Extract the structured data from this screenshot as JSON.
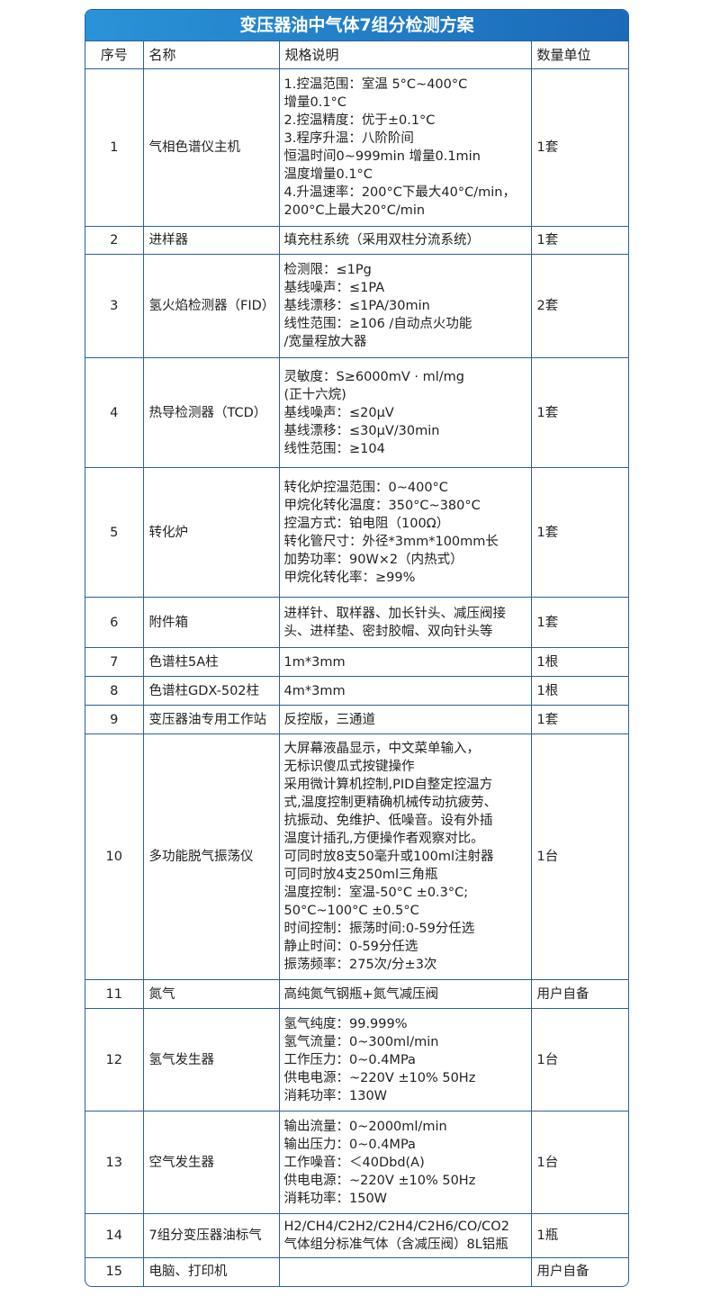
{
  "title": "变压器油中气体7组分检测方案",
  "headers": [
    "序号",
    "名称",
    "规格说明",
    "数量单位"
  ],
  "rows": [
    {
      "no": "1",
      "name": "气相色谱仪主机",
      "spec": "1.控温范围：室温 5°C~400°C\n增量0.1°C\n2.控温精度：优于±0.1°C\n3.程序升温：八阶阶间\n恒温时间0~999min 增量0.1min\n温度增量0.1°C\n4.升温速率：200°C下最大40°C/min，\n200°C上最大20°C/min",
      "qty": "1套"
    },
    {
      "no": "2",
      "name": "进样器",
      "spec": "填充柱系统（采用双柱分流系统）",
      "qty": "1套"
    },
    {
      "no": "3",
      "name": "氢火焰检测器（FID）",
      "spec": "检测限：≤1Pg\n基线噪声：≤1PA\n基线漂移：≤1PA/30min\n线性范围：≥106 /自动点火功能\n/宽量程放大器",
      "qty": "2套"
    },
    {
      "no": "4",
      "name": "热导检测器（TCD）",
      "spec": "灵敏度：S≥6000mV · ml/mg\n(正十六烷)\n基线噪声：≤20μV\n基线漂移：≤30μV/30min\n线性范围：≥104",
      "qty": "1套"
    },
    {
      "no": "5",
      "name": "转化炉",
      "spec": "转化炉控温范围：0~400°C\n甲烷化转化温度：350°C~380°C\n控温方式：铂电阻（100Ω）\n转化管尺寸：外径*3mm*100mm长\n加势功率：90W×2（内热式）\n甲烷化转化率：≥99%",
      "qty": "1套"
    },
    {
      "no": "6",
      "name": "附件箱",
      "spec": "进样针、取样器、加长针头、减压阀接\n头、进样垫、密封胶帽、双向针头等",
      "qty": "1套"
    },
    {
      "no": "7",
      "name": "色谱柱5A柱",
      "spec": "1m*3mm",
      "qty": "1根"
    },
    {
      "no": "8",
      "name": "色谱柱GDX-502柱",
      "spec": "4m*3mm",
      "qty": "1根"
    },
    {
      "no": "9",
      "name": "变压器油专用工作站",
      "spec": "反控版，三通道",
      "qty": "1套"
    },
    {
      "no": "10",
      "name": "多功能脱气振荡仪",
      "spec": "大屏幕液晶显示，中文菜单输入，\n无标识傻瓜式按键操作\n采用微计算机控制,PID自整定控温方\n式,温度控制更精确机械传动抗疲劳、\n抗振动、免维护、低噪音。设有外插\n温度计插孔,方便操作者观察对比。\n可同时放8支50毫升或100ml注射器\n可同时放4支250ml三角瓶\n温度控制：室温-50°C ±0.3°C;\n 50°C~100°C ±0.5°C\n时间控制：振荡时间:0-59分任选\n静止时间：0-59分任选\n振荡频率：275次/分±3次",
      "qty": "1台"
    },
    {
      "no": "11",
      "name": "氮气",
      "spec": "高纯氮气钢瓶+氮气减压阀",
      "qty": "用户自备"
    },
    {
      "no": "12",
      "name": "氢气发生器",
      "spec": "氢气纯度：99.999%\n氢气流量：0~300ml/min\n工作压力：0~0.4MPa\n供电电源：~220V ±10% 50Hz\n消耗功率：130W",
      "qty": "1台"
    },
    {
      "no": "13",
      "name": "空气发生器",
      "spec": "输出流量：0~2000ml/min\n输出压力：0~0.4MPa\n工作噪音：＜40Dbd(A)\n供电电源：~220V ±10% 50Hz\n消耗功率：150W",
      "qty": "1台"
    },
    {
      "no": "14",
      "name": "7组分变压器油标气",
      "spec": "H2/CH4/C2H2/C2H4/C2H6/CO/CO2\n气体组分标准气体（含减压阀）8L铝瓶",
      "qty": "1瓶"
    },
    {
      "no": "15",
      "name": "电脑、打印机",
      "spec": "",
      "qty": "用户自备"
    }
  ]
}
